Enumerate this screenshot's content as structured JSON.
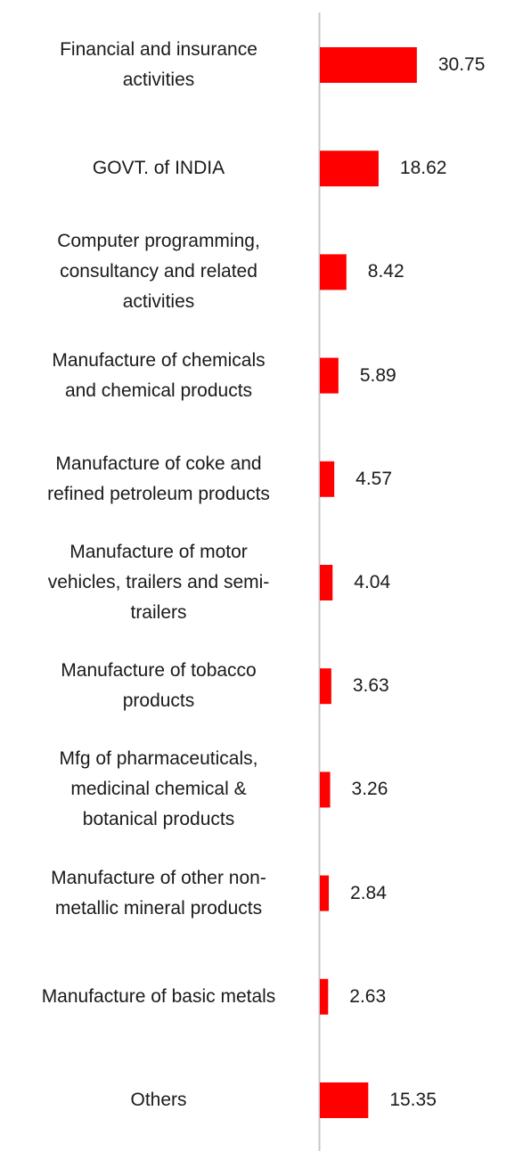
{
  "chart_data": {
    "type": "bar",
    "orientation": "horizontal",
    "categories": [
      "Financial and insurance\nactivities",
      "GOVT. of INDIA",
      "Computer programming,\nconsultancy and related\nactivities",
      "Manufacture of chemicals\nand chemical products",
      "Manufacture of coke and\nrefined petroleum products",
      "Manufacture of motor\nvehicles, trailers and semi-\ntrailers",
      "Manufacture of tobacco\nproducts",
      "Mfg of pharmaceuticals,\nmedicinal chemical &\nbotanical products",
      "Manufacture of other non-\nmetallic mineral products",
      "Manufacture of basic metals",
      "Others"
    ],
    "values": [
      30.75,
      18.62,
      8.42,
      5.89,
      4.57,
      4.04,
      3.63,
      3.26,
      2.84,
      2.63,
      15.35
    ],
    "value_labels": [
      "30.75",
      "18.62",
      "8.42",
      "5.89",
      "4.57",
      "4.04",
      "3.63",
      "3.26",
      "2.84",
      "2.63",
      "15.35"
    ],
    "title": "",
    "xlabel": "",
    "ylabel": "",
    "grid": false,
    "legend": "none",
    "bar_color": "#ff0000",
    "axis_color": "#c8c8c8"
  }
}
